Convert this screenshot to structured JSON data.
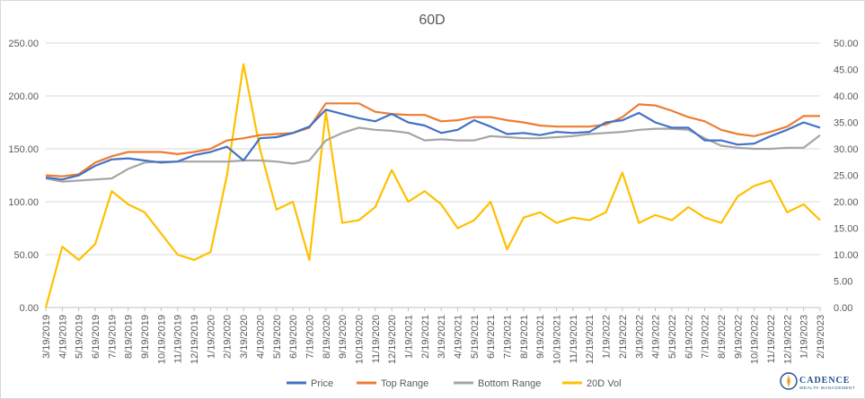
{
  "chart_data": {
    "type": "line",
    "title": "60D",
    "x_labels": [
      "3/19/2019",
      "4/19/2019",
      "5/19/2019",
      "6/19/2019",
      "7/19/2019",
      "8/19/2019",
      "9/19/2019",
      "10/19/2019",
      "11/19/2019",
      "12/19/2019",
      "1/19/2020",
      "2/19/2020",
      "3/19/2020",
      "4/19/2020",
      "5/19/2020",
      "6/19/2020",
      "7/19/2020",
      "8/19/2020",
      "9/19/2020",
      "10/19/2020",
      "11/19/2020",
      "12/19/2020",
      "1/19/2021",
      "2/19/2021",
      "3/19/2021",
      "4/19/2021",
      "5/19/2021",
      "6/19/2021",
      "7/19/2021",
      "8/19/2021",
      "9/19/2021",
      "10/19/2021",
      "11/19/2021",
      "12/19/2021",
      "1/19/2022",
      "2/19/2022",
      "3/19/2022",
      "4/19/2022",
      "5/19/2022",
      "6/19/2022",
      "7/19/2022",
      "8/19/2022",
      "9/19/2022",
      "10/19/2022",
      "11/19/2022",
      "12/19/2022",
      "1/19/2023",
      "2/19/2023"
    ],
    "y_left": {
      "min": 0,
      "max": 250,
      "ticks": [
        "0.00",
        "50.00",
        "100.00",
        "150.00",
        "200.00",
        "250.00"
      ]
    },
    "y_right": {
      "min": 0,
      "max": 50,
      "ticks": [
        "0.00",
        "5.00",
        "10.00",
        "15.00",
        "20.00",
        "25.00",
        "30.00",
        "35.00",
        "40.00",
        "45.00",
        "50.00"
      ]
    },
    "grid": true,
    "legend_position": "bottom",
    "series": [
      {
        "name": "Price",
        "axis": "left",
        "color": "#4472c4",
        "values": [
          123,
          121,
          125,
          134,
          140,
          141,
          139,
          137,
          138,
          144,
          147,
          152,
          139,
          160,
          161,
          165,
          171,
          187,
          183,
          179,
          176,
          183,
          175,
          172,
          165,
          168,
          177,
          171,
          164,
          165,
          163,
          166,
          165,
          166,
          175,
          177,
          184,
          175,
          170,
          170,
          158,
          158,
          154,
          155,
          162,
          168,
          175,
          170
        ]
      },
      {
        "name": "Top Range",
        "axis": "left",
        "color": "#ed7d31",
        "values": [
          125,
          124,
          126,
          137,
          143,
          147,
          147,
          147,
          145,
          147,
          150,
          158,
          160,
          163,
          164,
          165,
          170,
          193,
          193,
          193,
          185,
          183,
          182,
          182,
          176,
          177,
          180,
          180,
          177,
          175,
          172,
          171,
          171,
          171,
          173,
          180,
          192,
          191,
          186,
          180,
          176,
          168,
          164,
          162,
          166,
          171,
          181,
          181
        ]
      },
      {
        "name": "Bottom Range",
        "axis": "left",
        "color": "#a5a5a5",
        "values": [
          122,
          119,
          120,
          121,
          122,
          131,
          137,
          138,
          138,
          138,
          138,
          138,
          139,
          139,
          138,
          136,
          139,
          158,
          165,
          170,
          168,
          167,
          165,
          158,
          159,
          158,
          158,
          162,
          161,
          160,
          160,
          161,
          162,
          164,
          165,
          166,
          168,
          169,
          169,
          168,
          160,
          153,
          151,
          150,
          150,
          151,
          151,
          163
        ]
      },
      {
        "name": "20D Vol",
        "axis": "right",
        "color": "#ffc000",
        "values": [
          0,
          11.5,
          9,
          12,
          22,
          19.5,
          18,
          14,
          10,
          9,
          10.5,
          25,
          46,
          30,
          18.5,
          20,
          9,
          37,
          16,
          16.5,
          19,
          26,
          20,
          22,
          19.5,
          15,
          16.5,
          20,
          11,
          17,
          18,
          16,
          17,
          16.5,
          18,
          25.5,
          16,
          17.5,
          16.5,
          19,
          17,
          16,
          21,
          23,
          24,
          18,
          19.5,
          16.5
        ]
      }
    ]
  },
  "branding": {
    "name": "CADENCE",
    "tagline": "WEALTH MANAGEMENT"
  }
}
